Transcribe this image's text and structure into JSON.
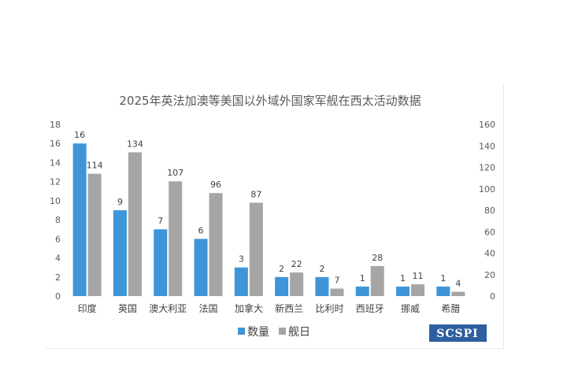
{
  "chart_data": {
    "type": "bar",
    "title": "2025年英法加澳等美国以外域外国家军舰在西太活动数据",
    "categories": [
      "印度",
      "英国",
      "澳大利亚",
      "法国",
      "加拿大",
      "新西兰",
      "比利时",
      "西班牙",
      "挪威",
      "希腊"
    ],
    "series": [
      {
        "name": "数量",
        "values": [
          16,
          9,
          7,
          6,
          3,
          2,
          2,
          1,
          1,
          1
        ],
        "axis": "left",
        "color": "#3e95d8"
      },
      {
        "name": "舰日",
        "values": [
          114,
          134,
          107,
          96,
          87,
          22,
          7,
          28,
          11,
          4
        ],
        "axis": "right",
        "color": "#a5a5a5"
      }
    ],
    "y_left": {
      "ylim": [
        0,
        18
      ],
      "ticks": [
        "0",
        "2",
        "4",
        "6",
        "8",
        "10",
        "12",
        "14",
        "16",
        "18"
      ]
    },
    "y_right": {
      "ylim": [
        0,
        160
      ],
      "ticks": [
        "0",
        "20",
        "40",
        "60",
        "80",
        "100",
        "120",
        "140",
        "160"
      ]
    },
    "grid": false,
    "legend": "bottom"
  },
  "logo": {
    "text": "SCSPI",
    "color": "#2e5fa0"
  }
}
